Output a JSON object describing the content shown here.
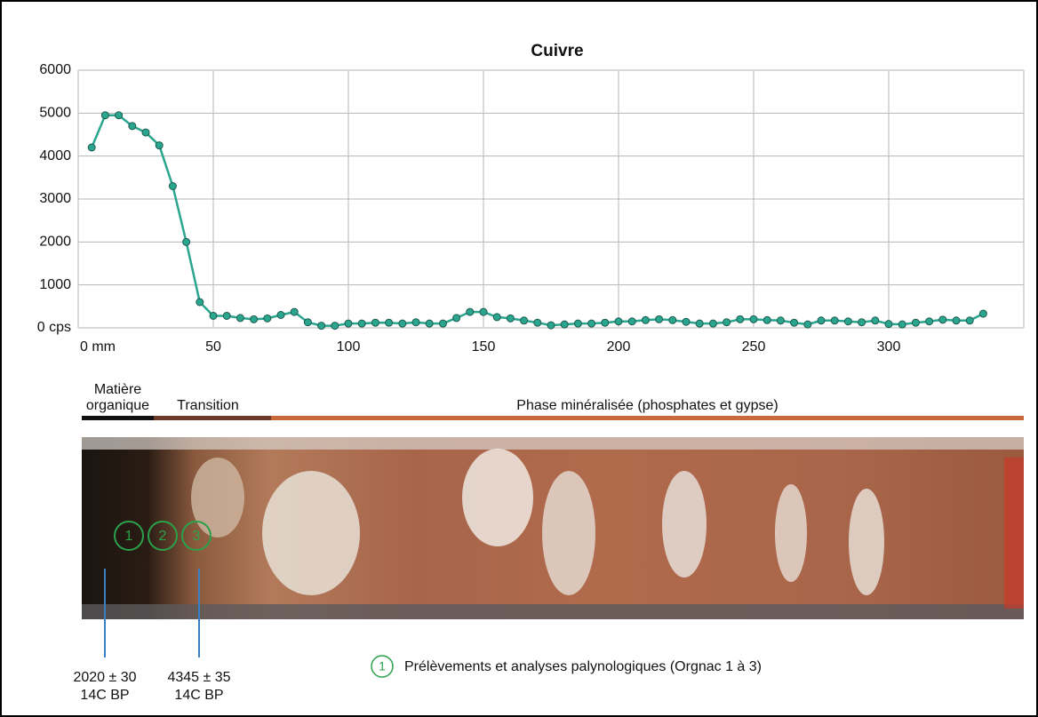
{
  "chart_data": {
    "type": "line",
    "title": "Cuivre",
    "x": [
      5,
      10,
      15,
      20,
      25,
      30,
      35,
      40,
      45,
      50,
      55,
      60,
      65,
      70,
      75,
      80,
      85,
      90,
      95,
      100,
      105,
      110,
      115,
      120,
      125,
      130,
      135,
      140,
      145,
      150,
      155,
      160,
      165,
      170,
      175,
      180,
      185,
      190,
      195,
      200,
      205,
      210,
      215,
      220,
      225,
      230,
      235,
      240,
      245,
      250,
      255,
      260,
      265,
      270,
      275,
      280,
      285,
      290,
      295,
      300,
      305,
      310,
      315,
      320,
      325,
      330,
      335
    ],
    "series": [
      {
        "name": "Cuivre",
        "color": "#2aa58e",
        "values": [
          4200,
          4950,
          4950,
          4700,
          4550,
          4250,
          3300,
          2000,
          600,
          280,
          280,
          230,
          200,
          220,
          300,
          370,
          130,
          50,
          50,
          100,
          100,
          120,
          120,
          100,
          130,
          100,
          100,
          230,
          370,
          370,
          250,
          220,
          170,
          120,
          60,
          80,
          100,
          100,
          120,
          150,
          150,
          180,
          200,
          180,
          140,
          100,
          100,
          130,
          200,
          200,
          180,
          170,
          120,
          80,
          170,
          170,
          150,
          130,
          170,
          90,
          80,
          120,
          150,
          190,
          170,
          170,
          330
        ]
      }
    ],
    "xlim": [
      0,
      350
    ],
    "ylim": [
      0,
      6000
    ],
    "xticks": [
      {
        "value": 0,
        "label": "0 mm"
      },
      50,
      100,
      150,
      200,
      250,
      300
    ],
    "yticks": [
      {
        "value": 0,
        "label": "0 cps"
      },
      1000,
      2000,
      3000,
      4000,
      5000,
      6000
    ],
    "grid": true
  },
  "zones": [
    {
      "label": [
        "Matière",
        "organique"
      ],
      "color": "#111111"
    },
    {
      "label": [
        "Transition"
      ],
      "color": "#6b3a28"
    },
    {
      "label": [
        "Phase minéralisée (phosphates et gypse)"
      ],
      "color": "#c8693a"
    }
  ],
  "samples": [
    "1",
    "2",
    "3"
  ],
  "dates": [
    {
      "age": "2020 ± 30",
      "unit": "14C BP"
    },
    {
      "age": "4345 ± 35",
      "unit": "14C BP"
    }
  ],
  "legend": {
    "marker": "1",
    "text": "Prélèvements et analyses palynologiques (Orgnac 1 à 3)"
  }
}
